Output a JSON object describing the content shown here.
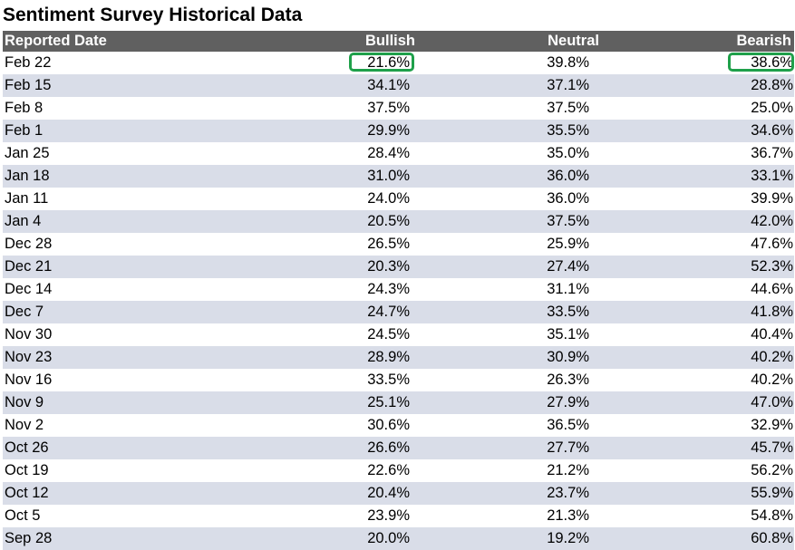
{
  "title": "Sentiment Survey Historical Data",
  "highlight_color": "#1fa04a",
  "header_color": "#606060",
  "stripe_color": "#d9dde8",
  "columns": {
    "date": "Reported Date",
    "bullish": "Bullish",
    "neutral": "Neutral",
    "bearish": "Bearish"
  },
  "rows": [
    {
      "date": "Feb 22",
      "bullish": "21.6%",
      "neutral": "39.8%",
      "bearish": "38.6%"
    },
    {
      "date": "Feb 15",
      "bullish": "34.1%",
      "neutral": "37.1%",
      "bearish": "28.8%"
    },
    {
      "date": "Feb 8",
      "bullish": "37.5%",
      "neutral": "37.5%",
      "bearish": "25.0%"
    },
    {
      "date": "Feb 1",
      "bullish": "29.9%",
      "neutral": "35.5%",
      "bearish": "34.6%"
    },
    {
      "date": "Jan 25",
      "bullish": "28.4%",
      "neutral": "35.0%",
      "bearish": "36.7%"
    },
    {
      "date": "Jan 18",
      "bullish": "31.0%",
      "neutral": "36.0%",
      "bearish": "33.1%"
    },
    {
      "date": "Jan 11",
      "bullish": "24.0%",
      "neutral": "36.0%",
      "bearish": "39.9%"
    },
    {
      "date": "Jan 4",
      "bullish": "20.5%",
      "neutral": "37.5%",
      "bearish": "42.0%"
    },
    {
      "date": "Dec 28",
      "bullish": "26.5%",
      "neutral": "25.9%",
      "bearish": "47.6%"
    },
    {
      "date": "Dec 21",
      "bullish": "20.3%",
      "neutral": "27.4%",
      "bearish": "52.3%"
    },
    {
      "date": "Dec 14",
      "bullish": "24.3%",
      "neutral": "31.1%",
      "bearish": "44.6%"
    },
    {
      "date": "Dec 7",
      "bullish": "24.7%",
      "neutral": "33.5%",
      "bearish": "41.8%"
    },
    {
      "date": "Nov 30",
      "bullish": "24.5%",
      "neutral": "35.1%",
      "bearish": "40.4%"
    },
    {
      "date": "Nov 23",
      "bullish": "28.9%",
      "neutral": "30.9%",
      "bearish": "40.2%"
    },
    {
      "date": "Nov 16",
      "bullish": "33.5%",
      "neutral": "26.3%",
      "bearish": "40.2%"
    },
    {
      "date": "Nov 9",
      "bullish": "25.1%",
      "neutral": "27.9%",
      "bearish": "47.0%"
    },
    {
      "date": "Nov 2",
      "bullish": "30.6%",
      "neutral": "36.5%",
      "bearish": "32.9%"
    },
    {
      "date": "Oct 26",
      "bullish": "26.6%",
      "neutral": "27.7%",
      "bearish": "45.7%"
    },
    {
      "date": "Oct 19",
      "bullish": "22.6%",
      "neutral": "21.2%",
      "bearish": "56.2%"
    },
    {
      "date": "Oct 12",
      "bullish": "20.4%",
      "neutral": "23.7%",
      "bearish": "55.9%"
    },
    {
      "date": "Oct 5",
      "bullish": "23.9%",
      "neutral": "21.3%",
      "bearish": "54.8%"
    },
    {
      "date": "Sep 28",
      "bullish": "20.0%",
      "neutral": "19.2%",
      "bearish": "60.8%"
    }
  ]
}
